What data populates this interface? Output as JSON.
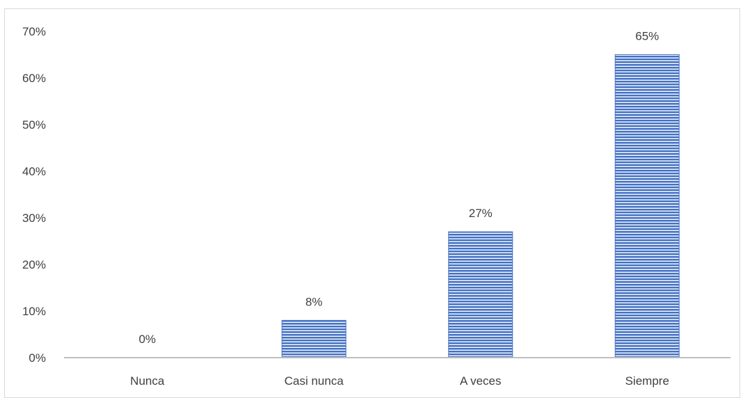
{
  "chart_data": {
    "type": "bar",
    "categories": [
      "Nunca",
      "Casi nunca",
      "A veces",
      "Siempre"
    ],
    "values": [
      0,
      8,
      27,
      65
    ],
    "data_labels": [
      "0%",
      "8%",
      "27%",
      "65%"
    ],
    "title": "",
    "xlabel": "",
    "ylabel": "",
    "ylim": [
      0,
      70
    ],
    "yticks": [
      0,
      10,
      20,
      30,
      40,
      50,
      60,
      70
    ],
    "ytick_labels": [
      "0%",
      "10%",
      "20%",
      "30%",
      "40%",
      "50%",
      "60%",
      "70%"
    ],
    "grid": false,
    "legend": "none",
    "bar_color": "#4472c4",
    "bar_pattern": "horizontal-stripes"
  }
}
